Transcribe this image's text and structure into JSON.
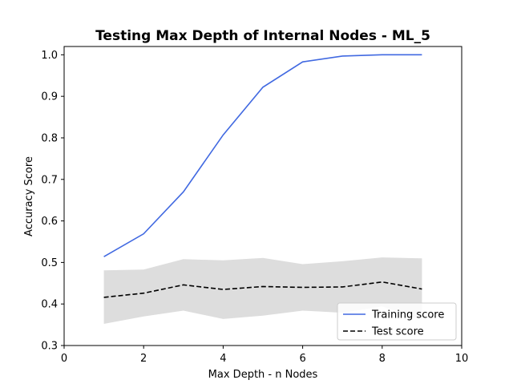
{
  "chart_data": {
    "type": "line",
    "title": "Testing Max Depth of Internal Nodes - ML_5",
    "xlabel": "Max Depth - n Nodes",
    "ylabel": "Accuracy Score",
    "xlim": [
      0,
      10
    ],
    "ylim": [
      0.3,
      1.02
    ],
    "xticks": [
      0,
      2,
      4,
      6,
      8,
      10
    ],
    "yticks": [
      0.3,
      0.4,
      0.5,
      0.6,
      0.7,
      0.8,
      0.9,
      1.0
    ],
    "ytick_labels": [
      "0.3",
      "0.4",
      "0.5",
      "0.6",
      "0.7",
      "0.8",
      "0.9",
      "1.0"
    ],
    "grid": false,
    "legend_position": "lower-right",
    "x": [
      1,
      2,
      3,
      4,
      5,
      6,
      7,
      8,
      9
    ],
    "series": [
      {
        "name": "Training score",
        "style": "solid",
        "color": "#4169e1",
        "values": [
          0.514,
          0.569,
          0.67,
          0.807,
          0.922,
          0.983,
          0.997,
          1.0,
          1.0
        ]
      },
      {
        "name": "Test score",
        "style": "dashed",
        "color": "#000000",
        "values": [
          0.416,
          0.426,
          0.446,
          0.435,
          0.442,
          0.44,
          0.441,
          0.453,
          0.436
        ],
        "band_lower": [
          0.352,
          0.37,
          0.384,
          0.364,
          0.372,
          0.384,
          0.379,
          0.394,
          0.362
        ],
        "band_upper": [
          0.481,
          0.483,
          0.508,
          0.505,
          0.511,
          0.496,
          0.503,
          0.512,
          0.51
        ],
        "band_color": "#dddddd"
      }
    ]
  }
}
